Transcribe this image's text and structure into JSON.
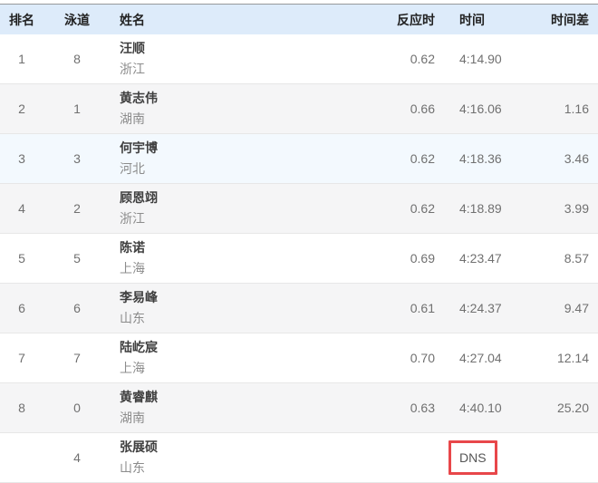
{
  "table": {
    "columns": [
      {
        "key": "rank",
        "label": "排名"
      },
      {
        "key": "lane",
        "label": "泳道"
      },
      {
        "key": "name",
        "label": "姓名"
      },
      {
        "key": "reaction",
        "label": "反应时"
      },
      {
        "key": "time",
        "label": "时间"
      },
      {
        "key": "diff",
        "label": "时间差"
      }
    ],
    "rows": [
      {
        "rank": "1",
        "lane": "8",
        "name": "汪顺",
        "team": "浙江",
        "reaction": "0.62",
        "time": "4:14.90",
        "diff": ""
      },
      {
        "rank": "2",
        "lane": "1",
        "name": "黄志伟",
        "team": "湖南",
        "reaction": "0.66",
        "time": "4:16.06",
        "diff": "1.16"
      },
      {
        "rank": "3",
        "lane": "3",
        "name": "何宇博",
        "team": "河北",
        "reaction": "0.62",
        "time": "4:18.36",
        "diff": "3.46"
      },
      {
        "rank": "4",
        "lane": "2",
        "name": "顾恩翊",
        "team": "浙江",
        "reaction": "0.62",
        "time": "4:18.89",
        "diff": "3.99"
      },
      {
        "rank": "5",
        "lane": "5",
        "name": "陈诺",
        "team": "上海",
        "reaction": "0.69",
        "time": "4:23.47",
        "diff": "8.57"
      },
      {
        "rank": "6",
        "lane": "6",
        "name": "李易峰",
        "team": "山东",
        "reaction": "0.61",
        "time": "4:24.37",
        "diff": "9.47"
      },
      {
        "rank": "7",
        "lane": "7",
        "name": "陆屹宸",
        "team": "上海",
        "reaction": "0.70",
        "time": "4:27.04",
        "diff": "12.14"
      },
      {
        "rank": "8",
        "lane": "0",
        "name": "黄睿麒",
        "team": "湖南",
        "reaction": "0.63",
        "time": "4:40.10",
        "diff": "25.20"
      },
      {
        "rank": "",
        "lane": "4",
        "name": "张展硕",
        "team": "山东",
        "reaction": "",
        "time": "DNS",
        "diff": ""
      }
    ]
  },
  "colors": {
    "header_bg": "#ddebfa",
    "stripe_bg": "#f5f5f6",
    "hover_row_bg": "#f3f9fe",
    "dns_box_border": "#e8474a",
    "name_text": "#3f3f3f",
    "secondary_text": "#8c8c8c",
    "number_text": "#707070"
  }
}
